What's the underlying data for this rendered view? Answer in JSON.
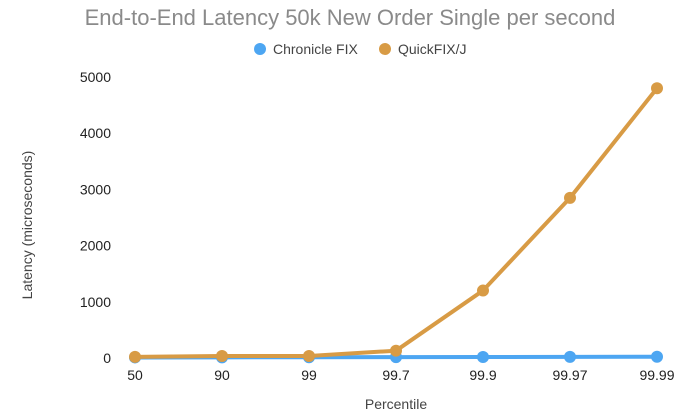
{
  "chart_data": {
    "type": "line",
    "title": "End-to-End Latency 50k New Order Single per second",
    "xlabel": "Percentile",
    "ylabel": "Latency (microseconds)",
    "categories": [
      "50",
      "90",
      "99",
      "99.7",
      "99.9",
      "99.97",
      "99.99"
    ],
    "ylim": [
      0,
      5000
    ],
    "yticks": [
      0,
      1000,
      2000,
      3000,
      4000,
      5000
    ],
    "grid": false,
    "legend_position": "top-center",
    "series": [
      {
        "name": "Chronicle FIX",
        "color": "#4da6f2",
        "values": [
          10,
          12,
          14,
          15,
          18,
          20,
          22
        ]
      },
      {
        "name": "QuickFIX/J",
        "color": "#d89b45",
        "values": [
          20,
          35,
          35,
          130,
          1200,
          2850,
          4800
        ]
      }
    ]
  }
}
